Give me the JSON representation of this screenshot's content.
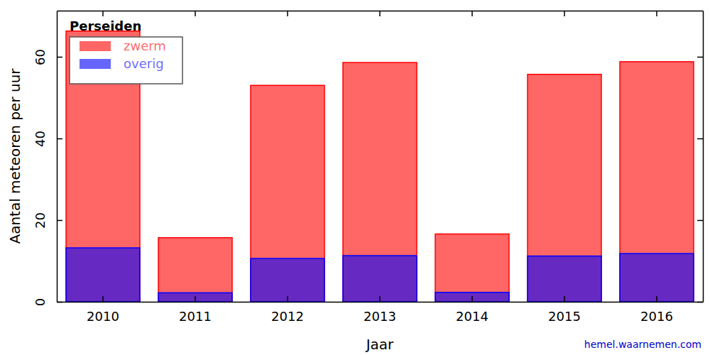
{
  "chart_data": {
    "type": "bar",
    "title": "Perseiden",
    "x_label": "Jaar",
    "y_label": "Aantal meteoren per uur",
    "categories": [
      "2010",
      "2011",
      "2012",
      "2013",
      "2014",
      "2015",
      "2016"
    ],
    "series": [
      {
        "name": "zwerm",
        "color": "#ff0000",
        "values": [
          66.3,
          15.7,
          53.0,
          58.6,
          16.6,
          55.7,
          58.8
        ]
      },
      {
        "name": "overig",
        "color": "#0000ff",
        "values": [
          13.2,
          2.2,
          10.6,
          11.3,
          2.3,
          11.2,
          11.8
        ]
      }
    ],
    "ylim": [
      0,
      71.3
    ],
    "yticks": [
      0,
      20,
      40,
      60
    ],
    "stacked": false,
    "grid": false,
    "legend": "upper left",
    "annotations": [
      "hemel.waarnemen.com"
    ]
  }
}
